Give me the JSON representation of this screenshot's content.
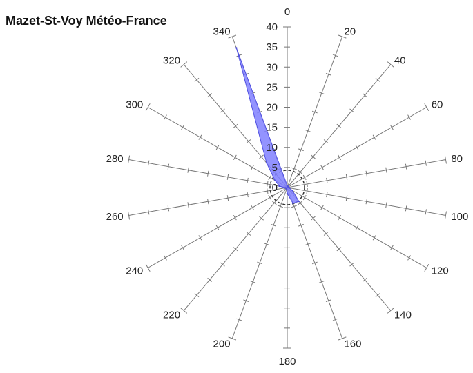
{
  "title": "Mazet-St-Voy Météo-France",
  "colors": {
    "fill": "#8080ff",
    "stroke": "#5050e0",
    "axis": "#777777",
    "text": "#222222"
  },
  "chart_data": {
    "type": "radar",
    "title": "Mazet-St-Voy Météo-France",
    "directions": [
      0,
      20,
      40,
      60,
      80,
      100,
      120,
      140,
      160,
      180,
      200,
      220,
      240,
      260,
      280,
      300,
      320,
      340
    ],
    "direction_labels": [
      "0",
      "20",
      "40",
      "60",
      "80",
      "100",
      "120",
      "140",
      "160",
      "180",
      "200",
      "220",
      "240",
      "260",
      "280",
      "300",
      "320",
      "340"
    ],
    "radial_ticks": [
      0,
      5,
      10,
      15,
      20,
      25,
      30,
      35,
      40
    ],
    "radial_tick_labels": [
      "0",
      "5",
      "10",
      "15",
      "20",
      "25",
      "30",
      "35",
      "40"
    ],
    "rlim": [
      0,
      40
    ],
    "values": [
      0.5,
      0.3,
      0.3,
      0.3,
      0.3,
      0.5,
      1.5,
      4.5,
      4.2,
      1.5,
      0.5,
      0.3,
      0.3,
      0.5,
      2.0,
      3.5,
      8.0,
      37.0
    ]
  }
}
